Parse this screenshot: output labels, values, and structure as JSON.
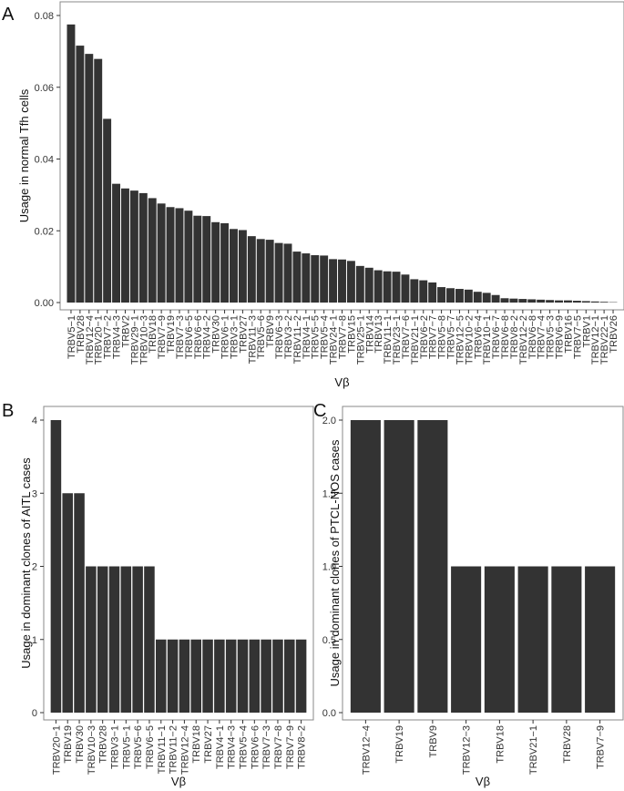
{
  "chart_data": [
    {
      "panel": "A",
      "type": "bar",
      "xlabel": "Vβ",
      "ylabel": "Usage in normal  Tfh cells",
      "ylim": [
        0,
        0.08
      ],
      "yticks": [
        "0.00",
        "0.02",
        "0.04",
        "0.06",
        "0.08"
      ],
      "yticks_values": [
        0,
        0.02,
        0.04,
        0.06,
        0.08
      ],
      "grid": false,
      "categories": [
        "TRBV5−1",
        "TRBV28",
        "TRBV12−4",
        "TRBV20−1",
        "TRBV7−2",
        "TRBV4−3",
        "TRBV2",
        "TRBV29−1",
        "TRBV10−3",
        "TRBV18",
        "TRBV7−9",
        "TRBV19",
        "TRBV7−3",
        "TRBV6−5",
        "TRBV6−6",
        "TRBV4−2",
        "TRBV30",
        "TRBV6−1",
        "TRBV3−1",
        "TRBV27",
        "TRBV11−3",
        "TRBV5−6",
        "TRBV9",
        "TRBV6−3",
        "TRBV3−2",
        "TRBV11−2",
        "TRBV4−1",
        "TRBV5−5",
        "TRBV5−4",
        "TRBV24−1",
        "TRBV7−8",
        "TRBV15",
        "TRBV25−1",
        "TRBV14",
        "TRBV13",
        "TRBV11−1",
        "TRBV23−1",
        "TRBV7−6",
        "TRBV21−1",
        "TRBV6−2",
        "TRBV7−7",
        "TRBV5−8",
        "TRBV5−7",
        "TRBV12−5",
        "TRBV10−2",
        "TRBV6−4",
        "TRBV10−1",
        "TRBV6−7",
        "TRBV6−8",
        "TRBV8−2",
        "TRBV12−2",
        "TRBV6−8",
        "TRBV7−4",
        "TRBV5−3",
        "TRBV6−9",
        "TRBV16",
        "TRBV7−5",
        "TRBV1",
        "TRBV12−1",
        "TRBV22−1",
        "TRBV26"
      ],
      "values": [
        0.0775,
        0.0716,
        0.0693,
        0.0679,
        0.0512,
        0.0331,
        0.0318,
        0.0312,
        0.0305,
        0.0291,
        0.0276,
        0.0266,
        0.0263,
        0.0256,
        0.0242,
        0.0241,
        0.0224,
        0.0221,
        0.0205,
        0.0202,
        0.0185,
        0.0177,
        0.0175,
        0.0166,
        0.0164,
        0.0142,
        0.0137,
        0.0132,
        0.0131,
        0.0121,
        0.012,
        0.0116,
        0.0102,
        0.0097,
        0.009,
        0.0087,
        0.0086,
        0.0078,
        0.0065,
        0.0062,
        0.0056,
        0.0043,
        0.004,
        0.0038,
        0.0036,
        0.003,
        0.0027,
        0.0021,
        0.0012,
        0.0011,
        0.001,
        0.0009,
        0.0008,
        0.0007,
        0.0006,
        0.0006,
        0.0005,
        0.0004,
        0.0003,
        0.0002,
        0.0001
      ]
    },
    {
      "panel": "B",
      "type": "bar",
      "xlabel": "Vβ",
      "ylabel": "Usage in dominant clones of AITL cases",
      "ylim": [
        0,
        4
      ],
      "yticks": [
        "0",
        "1",
        "2",
        "3",
        "4"
      ],
      "yticks_values": [
        0,
        1,
        2,
        3,
        4
      ],
      "grid": false,
      "categories": [
        "TRBV20−1",
        "TRBV19",
        "TRBV30",
        "TRBV10−3",
        "TRBV28",
        "TRBV3−1",
        "TRBV5−1",
        "TRBV5−6",
        "TRBV6−5",
        "TRBV11−1",
        "TRBV11−2",
        "TRBV12−4",
        "TRBV18",
        "TRBV27",
        "TRBV4−1",
        "TRBV4−3",
        "TRBV5−4",
        "TRBV6−6",
        "TRBV7−3",
        "TRBV7−8",
        "TRBV7−9",
        "TRBV8−2"
      ],
      "values": [
        4,
        3,
        3,
        2,
        2,
        2,
        2,
        2,
        2,
        1,
        1,
        1,
        1,
        1,
        1,
        1,
        1,
        1,
        1,
        1,
        1,
        1
      ]
    },
    {
      "panel": "C",
      "type": "bar",
      "xlabel": "Vβ",
      "ylabel": "Usage in dominant clones of PTCL-NOS cases",
      "ylim": [
        0,
        2.0
      ],
      "yticks": [
        "0.0",
        "0.5",
        "1.0",
        "1.5",
        "2.0"
      ],
      "yticks_values": [
        0,
        0.5,
        1.0,
        1.5,
        2.0
      ],
      "grid": false,
      "categories": [
        "TRBV12−4",
        "TRBV19",
        "TRBV9",
        "TRBV12−3",
        "TRBV18",
        "TRBV21−1",
        "TRBV28",
        "TRBV7−9"
      ],
      "values": [
        2,
        2,
        2,
        1,
        1,
        1,
        1,
        1
      ]
    }
  ]
}
